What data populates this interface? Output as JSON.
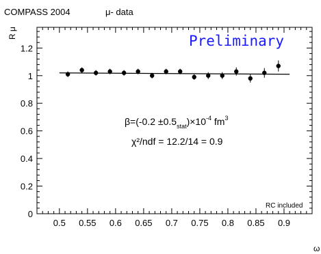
{
  "header": {
    "experiment": "COMPASS 2004",
    "dataset": "μ- data"
  },
  "stamp": {
    "label": "Preliminary",
    "color": "#1a1aff"
  },
  "note": {
    "rc": "RC included"
  },
  "fit": {
    "beta_prefix": "β=(-0.2 ±0.5",
    "beta_sub": "stat",
    "beta_suffix": ")×10",
    "beta_exp": "-4",
    "beta_unit": " fm",
    "beta_unit_exp": "3",
    "chi2": "χ²/ndf = 12.2/14 = 0.9"
  },
  "chart_data": {
    "type": "scatter",
    "xlabel": "ω",
    "ylabel": "R μ",
    "xlim": [
      0.46,
      0.95
    ],
    "ylim": [
      0,
      1.35
    ],
    "x_ticks": [
      0.5,
      0.55,
      0.6,
      0.65,
      0.7,
      0.75,
      0.8,
      0.85,
      0.9
    ],
    "x_tick_labels": [
      "0.5",
      "0.55",
      "0.6",
      "0.65",
      "0.7",
      "0.75",
      "0.8",
      "0.85",
      "0.9"
    ],
    "y_ticks": [
      0,
      0.2,
      0.4,
      0.6,
      0.8,
      1,
      1.2
    ],
    "y_tick_labels": [
      "0",
      "0.2",
      "0.4",
      "0.6",
      "0.8",
      "1",
      "1.2"
    ],
    "grid": false,
    "series": [
      {
        "x": [
          0.515,
          0.54,
          0.565,
          0.59,
          0.615,
          0.64,
          0.665,
          0.69,
          0.715,
          0.74,
          0.765,
          0.79,
          0.815,
          0.84,
          0.865,
          0.89
        ],
        "y": [
          1.01,
          1.04,
          1.02,
          1.03,
          1.02,
          1.03,
          1.0,
          1.03,
          1.03,
          0.99,
          1.0,
          1.0,
          1.03,
          0.98,
          1.02,
          1.07
        ],
        "err": [
          0.02,
          0.02,
          0.02,
          0.02,
          0.02,
          0.02,
          0.02,
          0.02,
          0.02,
          0.02,
          0.025,
          0.025,
          0.03,
          0.03,
          0.035,
          0.04
        ]
      }
    ],
    "fit_line": {
      "x": [
        0.5,
        0.91
      ],
      "y": [
        1.02,
        1.01
      ]
    }
  }
}
